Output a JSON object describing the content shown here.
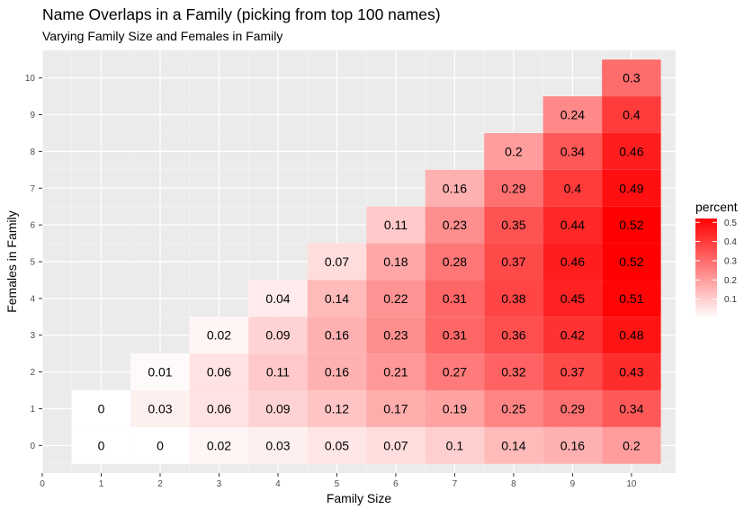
{
  "chart_data": {
    "type": "heatmap",
    "title": "Name Overlaps in a Family (picking from top 100 names)",
    "subtitle": "Varying Family Size and Females in Family",
    "xlabel": "Family Size",
    "ylabel": "Females in Family",
    "x_ticks": [
      0,
      1,
      2,
      3,
      4,
      5,
      6,
      7,
      8,
      9,
      10
    ],
    "y_ticks": [
      0,
      1,
      2,
      3,
      4,
      5,
      6,
      7,
      8,
      9,
      10
    ],
    "xlim": [
      0,
      10.75
    ],
    "ylim": [
      -0.75,
      10.75
    ],
    "grid": true,
    "legend": {
      "title": "percent",
      "position": "right",
      "ticks": [
        0.1,
        0.2,
        0.3,
        0.4,
        0.5
      ],
      "range": [
        0,
        0.52
      ],
      "low_color": "#FFFFFF",
      "high_color": "#FF0000"
    },
    "cells": [
      {
        "x": 1,
        "y": 0,
        "value": 0
      },
      {
        "x": 1,
        "y": 1,
        "value": 0
      },
      {
        "x": 2,
        "y": 0,
        "value": 0
      },
      {
        "x": 2,
        "y": 1,
        "value": 0.03
      },
      {
        "x": 2,
        "y": 2,
        "value": 0.01
      },
      {
        "x": 3,
        "y": 0,
        "value": 0.02
      },
      {
        "x": 3,
        "y": 1,
        "value": 0.06
      },
      {
        "x": 3,
        "y": 2,
        "value": 0.06
      },
      {
        "x": 3,
        "y": 3,
        "value": 0.02
      },
      {
        "x": 4,
        "y": 0,
        "value": 0.03
      },
      {
        "x": 4,
        "y": 1,
        "value": 0.09
      },
      {
        "x": 4,
        "y": 2,
        "value": 0.11
      },
      {
        "x": 4,
        "y": 3,
        "value": 0.09
      },
      {
        "x": 4,
        "y": 4,
        "value": 0.04
      },
      {
        "x": 5,
        "y": 0,
        "value": 0.05
      },
      {
        "x": 5,
        "y": 1,
        "value": 0.12
      },
      {
        "x": 5,
        "y": 2,
        "value": 0.16
      },
      {
        "x": 5,
        "y": 3,
        "value": 0.16
      },
      {
        "x": 5,
        "y": 4,
        "value": 0.14
      },
      {
        "x": 5,
        "y": 5,
        "value": 0.07
      },
      {
        "x": 6,
        "y": 0,
        "value": 0.07
      },
      {
        "x": 6,
        "y": 1,
        "value": 0.17
      },
      {
        "x": 6,
        "y": 2,
        "value": 0.21
      },
      {
        "x": 6,
        "y": 3,
        "value": 0.23
      },
      {
        "x": 6,
        "y": 4,
        "value": 0.22
      },
      {
        "x": 6,
        "y": 5,
        "value": 0.18
      },
      {
        "x": 6,
        "y": 6,
        "value": 0.11
      },
      {
        "x": 7,
        "y": 0,
        "value": 0.1
      },
      {
        "x": 7,
        "y": 1,
        "value": 0.19
      },
      {
        "x": 7,
        "y": 2,
        "value": 0.27
      },
      {
        "x": 7,
        "y": 3,
        "value": 0.31
      },
      {
        "x": 7,
        "y": 4,
        "value": 0.31
      },
      {
        "x": 7,
        "y": 5,
        "value": 0.28
      },
      {
        "x": 7,
        "y": 6,
        "value": 0.23
      },
      {
        "x": 7,
        "y": 7,
        "value": 0.16
      },
      {
        "x": 8,
        "y": 0,
        "value": 0.14
      },
      {
        "x": 8,
        "y": 1,
        "value": 0.25
      },
      {
        "x": 8,
        "y": 2,
        "value": 0.32
      },
      {
        "x": 8,
        "y": 3,
        "value": 0.36
      },
      {
        "x": 8,
        "y": 4,
        "value": 0.38
      },
      {
        "x": 8,
        "y": 5,
        "value": 0.37
      },
      {
        "x": 8,
        "y": 6,
        "value": 0.35
      },
      {
        "x": 8,
        "y": 7,
        "value": 0.29
      },
      {
        "x": 8,
        "y": 8,
        "value": 0.2
      },
      {
        "x": 9,
        "y": 0,
        "value": 0.16
      },
      {
        "x": 9,
        "y": 1,
        "value": 0.29
      },
      {
        "x": 9,
        "y": 2,
        "value": 0.37
      },
      {
        "x": 9,
        "y": 3,
        "value": 0.42
      },
      {
        "x": 9,
        "y": 4,
        "value": 0.45
      },
      {
        "x": 9,
        "y": 5,
        "value": 0.46
      },
      {
        "x": 9,
        "y": 6,
        "value": 0.44
      },
      {
        "x": 9,
        "y": 7,
        "value": 0.4
      },
      {
        "x": 9,
        "y": 8,
        "value": 0.34
      },
      {
        "x": 9,
        "y": 9,
        "value": 0.24
      },
      {
        "x": 10,
        "y": 0,
        "value": 0.2
      },
      {
        "x": 10,
        "y": 1,
        "value": 0.34
      },
      {
        "x": 10,
        "y": 2,
        "value": 0.43
      },
      {
        "x": 10,
        "y": 3,
        "value": 0.48
      },
      {
        "x": 10,
        "y": 4,
        "value": 0.51
      },
      {
        "x": 10,
        "y": 5,
        "value": 0.52
      },
      {
        "x": 10,
        "y": 6,
        "value": 0.52
      },
      {
        "x": 10,
        "y": 7,
        "value": 0.49
      },
      {
        "x": 10,
        "y": 8,
        "value": 0.46
      },
      {
        "x": 10,
        "y": 9,
        "value": 0.4
      },
      {
        "x": 10,
        "y": 10,
        "value": 0.3
      }
    ]
  }
}
